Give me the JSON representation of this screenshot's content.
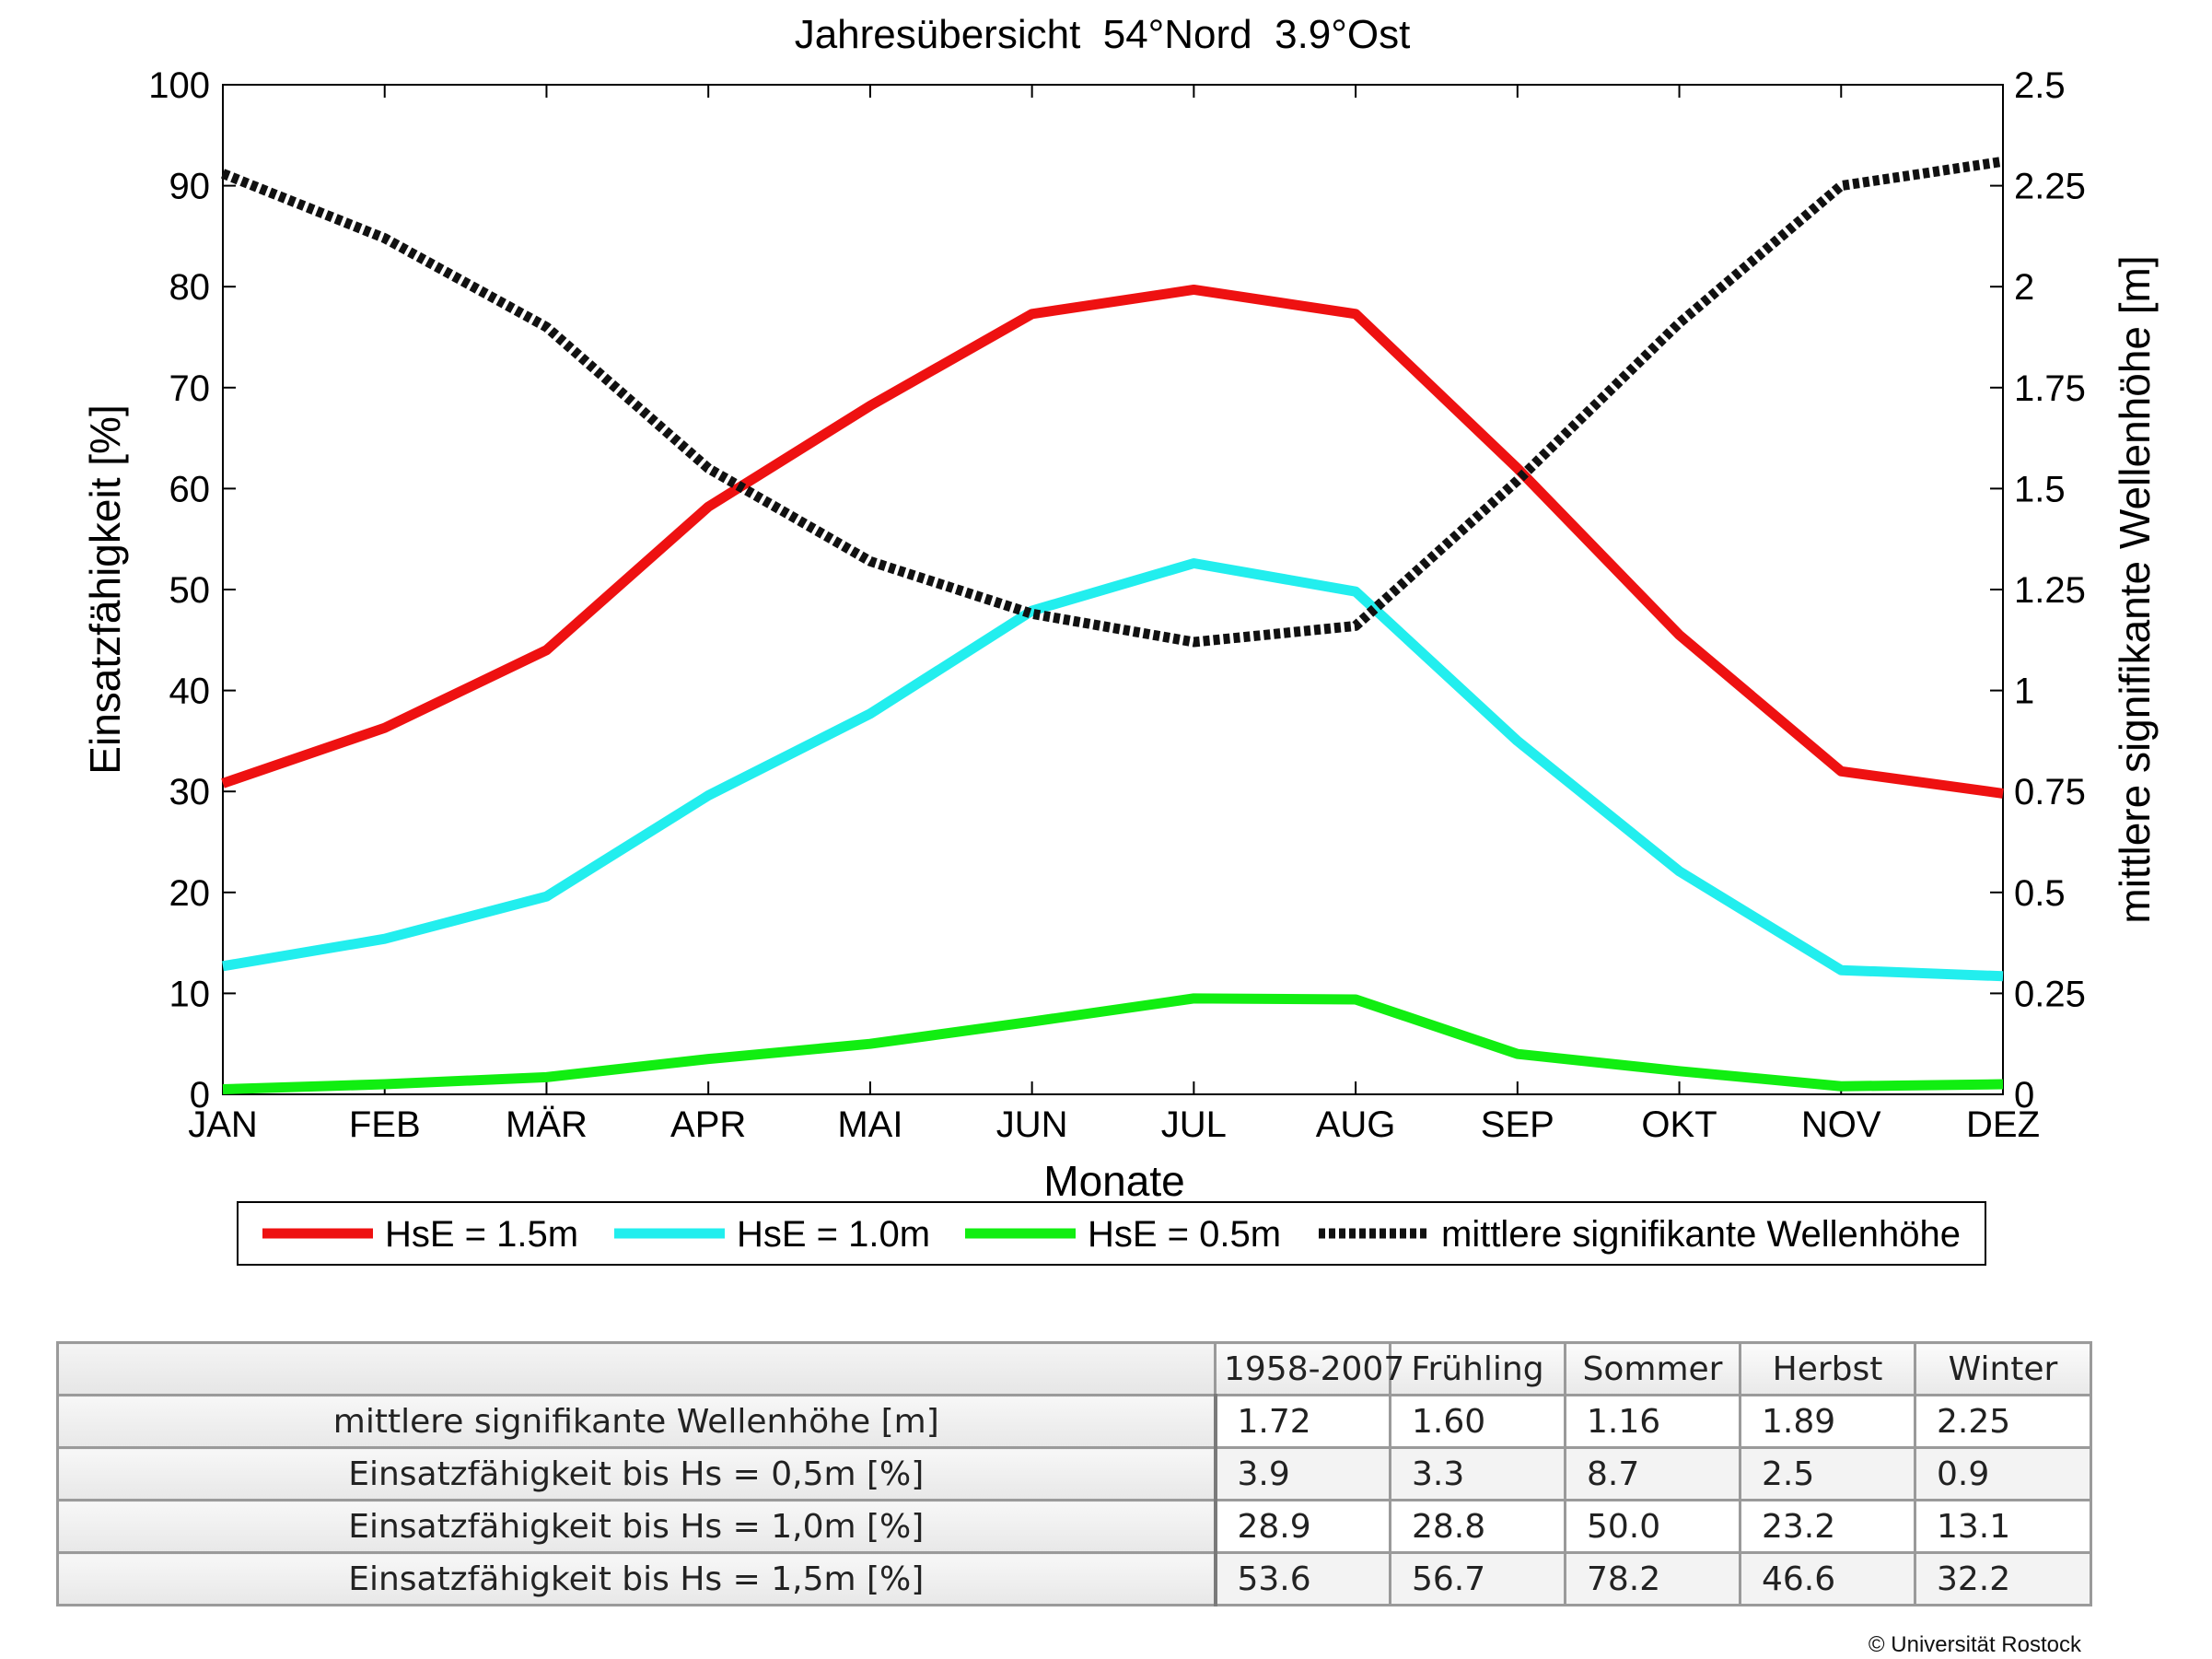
{
  "chart_data": {
    "type": "line",
    "title": "Jahresübersicht  54°Nord  3.9°Ost",
    "xlabel": "Monate",
    "ylabel": "Einsatzfähigkeit [%]",
    "y2label": "mittlere signifikante Wellenhöhe [m]",
    "categories": [
      "JAN",
      "FEB",
      "MÄR",
      "APR",
      "MAI",
      "JUN",
      "JUL",
      "AUG",
      "SEP",
      "OKT",
      "NOV",
      "DEZ"
    ],
    "ylim": [
      0,
      100
    ],
    "yticks": [
      "0",
      "10",
      "20",
      "30",
      "40",
      "50",
      "60",
      "70",
      "80",
      "90",
      "100"
    ],
    "y2lim": [
      0,
      2.5
    ],
    "y2ticks": [
      "0",
      "0.25",
      "0.5",
      "0.75",
      "1",
      "1.25",
      "1.5",
      "1.75",
      "2",
      "2.25",
      "2.5"
    ],
    "grid": false,
    "legend_position": "bottom",
    "series": [
      {
        "name": "HsE = 1.5m",
        "axis": "left",
        "color": "#ee1111",
        "style": "solid",
        "values": [
          30.8,
          36.3,
          44.0,
          58.2,
          68.2,
          77.3,
          79.7,
          77.3,
          62.0,
          45.5,
          32.0,
          29.8
        ]
      },
      {
        "name": "HsE = 1.0m",
        "axis": "left",
        "color": "#22eeee",
        "style": "solid",
        "values": [
          12.7,
          15.4,
          19.6,
          29.6,
          37.7,
          47.9,
          52.6,
          49.8,
          35.0,
          22.1,
          12.3,
          11.7
        ]
      },
      {
        "name": "HsE = 0.5m",
        "axis": "left",
        "color": "#11ee11",
        "style": "solid",
        "values": [
          0.5,
          1.0,
          1.7,
          3.5,
          5.0,
          7.2,
          9.5,
          9.4,
          4.0,
          2.3,
          0.8,
          1.0
        ]
      },
      {
        "name": "mittlere signifikante Wellenhöhe",
        "axis": "right",
        "color": "#111111",
        "style": "dotted",
        "values": [
          2.28,
          2.12,
          1.9,
          1.55,
          1.32,
          1.19,
          1.12,
          1.16,
          1.52,
          1.91,
          2.25,
          2.31
        ]
      }
    ]
  },
  "table": {
    "columns": [
      "1958-2007",
      "Frühling",
      "Sommer",
      "Herbst",
      "Winter"
    ],
    "rows": [
      {
        "label": "mittlere signifikante Wellenhöhe [m]",
        "values": [
          "1.72",
          "1.60",
          "1.16",
          "1.89",
          "2.25"
        ]
      },
      {
        "label": "Einsatzfähigkeit bis Hs = 0,5m [%]",
        "values": [
          "3.9",
          "3.3",
          "8.7",
          "2.5",
          "0.9"
        ]
      },
      {
        "label": "Einsatzfähigkeit bis Hs = 1,0m [%]",
        "values": [
          "28.9",
          "28.8",
          "50.0",
          "23.2",
          "13.1"
        ]
      },
      {
        "label": "Einsatzfähigkeit bis Hs = 1,5m [%]",
        "values": [
          "53.6",
          "56.7",
          "78.2",
          "46.6",
          "32.2"
        ]
      }
    ]
  },
  "footer": {
    "copyright": "© Universität Rostock"
  }
}
